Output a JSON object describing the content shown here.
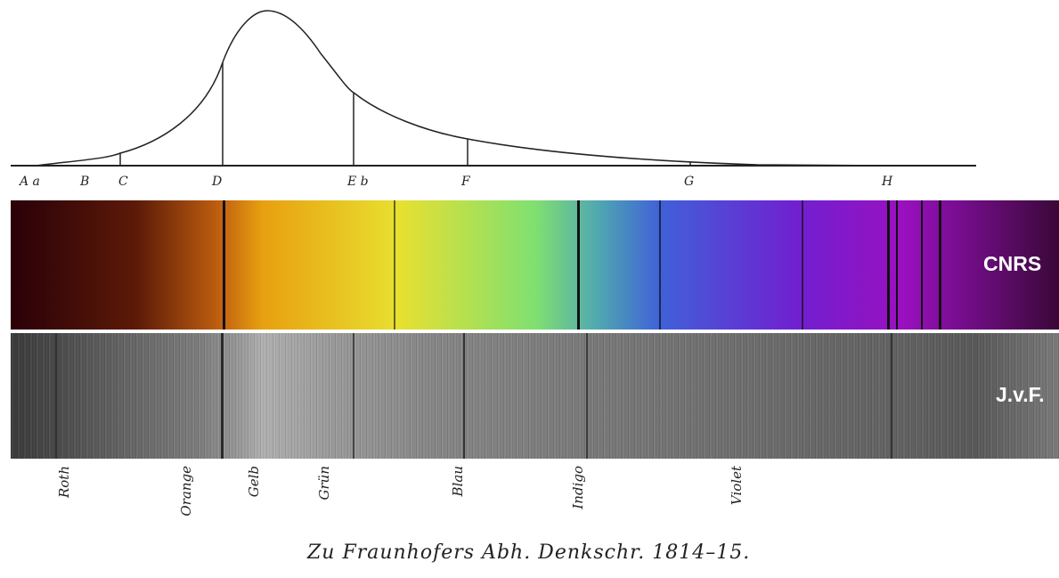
{
  "curve_labels": [
    "A a",
    "B",
    "C",
    "D",
    "E b",
    "F",
    "G",
    "H"
  ],
  "color_band_label": "CNRS",
  "gray_band_label": "J.v.F.",
  "color_words": [
    "Roth",
    "Orange",
    "Gelb",
    "Grün",
    "Blau",
    "Indigo",
    "Violet"
  ],
  "caption": "Zu Fraunhofers Abh. Denkschr. 1814–15.",
  "colors": {
    "curve": "#222222",
    "spectrum_stops": [
      "#2a0008",
      "#5c1a08",
      "#c06010",
      "#e8a010",
      "#e8e030",
      "#80e070",
      "#50a8b0",
      "#4060d8",
      "#7020d0",
      "#9a10c0",
      "#3a0838"
    ]
  }
}
